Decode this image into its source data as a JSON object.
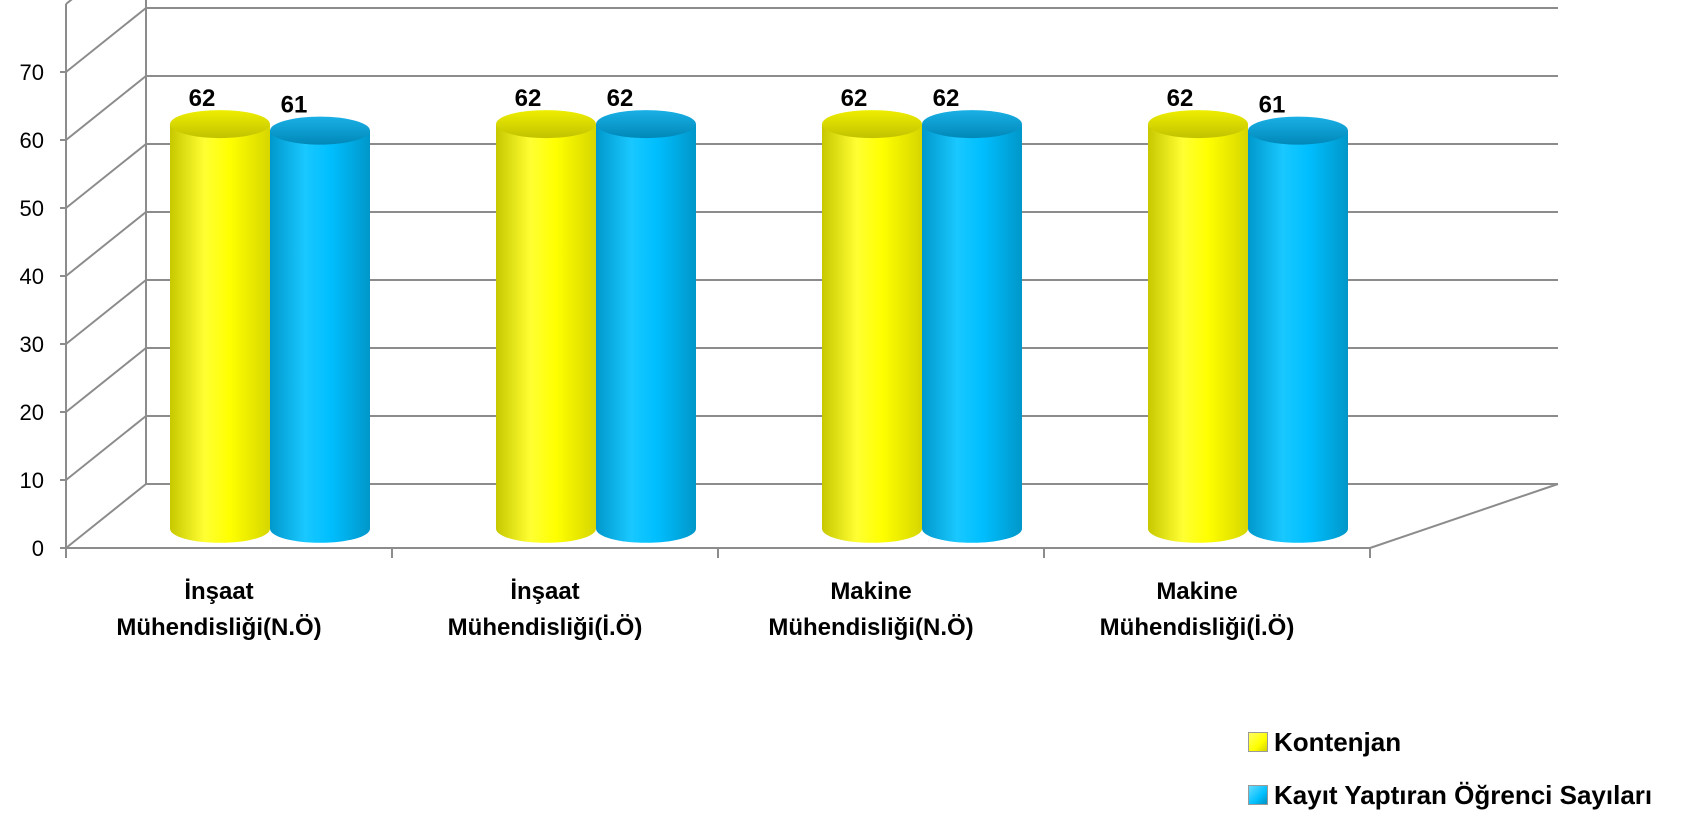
{
  "chart_data": {
    "type": "bar",
    "categories": [
      [
        "İnşaat",
        "Mühendisliği(N.Ö)"
      ],
      [
        "İnşaat",
        "Mühendisliği(İ.Ö)"
      ],
      [
        "Makine",
        "Mühendisliği(N.Ö)"
      ],
      [
        "Makine",
        "Mühendisliği(İ.Ö)"
      ]
    ],
    "series": [
      {
        "name": "Kontenjan",
        "values": [
          62,
          62,
          62,
          62
        ],
        "color": "#ffff00"
      },
      {
        "name": "Kayıt Yaptıran Öğrenci Sayıları",
        "values": [
          61,
          62,
          62,
          61
        ],
        "color": "#00bfff"
      }
    ],
    "yticks": [
      "0",
      "10",
      "20",
      "30",
      "40",
      "50",
      "60",
      "70"
    ],
    "ylim": [
      0,
      70
    ],
    "grid": true,
    "legend_position": "bottom-right",
    "three_d": true
  }
}
